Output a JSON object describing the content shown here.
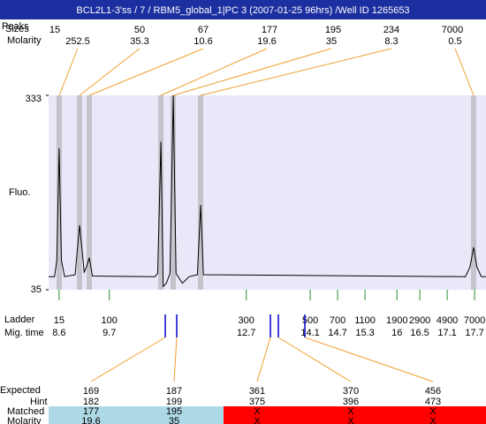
{
  "header": {
    "title": "BCL2L1-3'ss / 7 / RBM5_global_1|PC 3 (2007-01-25 96hrs) /Well ID 1265653"
  },
  "peak_table": {
    "row_labels": [
      "Peaks",
      "Sizes",
      "Molarity"
    ],
    "sizes": [
      15,
      50,
      67,
      177,
      195,
      234,
      7000
    ],
    "molarity": [
      252.5,
      35.3,
      10.6,
      19.6,
      35,
      8.3,
      0.5
    ]
  },
  "chart_data": {
    "type": "line",
    "ylabel": "Fluo.",
    "x": [
      8.37,
      8.5,
      8.55,
      8.6,
      8.65,
      8.72,
      8.95,
      9.05,
      9.15,
      9.2,
      9.26,
      9.33,
      10.7,
      10.76,
      10.83,
      10.88,
      10.95,
      11.03,
      11.1,
      11.16,
      11.3,
      11.45,
      11.63,
      11.7,
      11.76,
      17.5,
      17.6,
      17.68,
      17.75,
      17.85,
      17.95
    ],
    "values": [
      55,
      55,
      80,
      252,
      80,
      55,
      58,
      134,
      62,
      70,
      84,
      56,
      55,
      60,
      262,
      40,
      45,
      60,
      333,
      60,
      45,
      55,
      58,
      165,
      58,
      55,
      70,
      100,
      70,
      55,
      55
    ],
    "xlim": [
      8.37,
      17.95
    ],
    "ylim": [
      35,
      333
    ],
    "yticks": [
      35,
      333
    ],
    "color": "#000000"
  },
  "ladder": {
    "label": "Ladder",
    "time_label": "Mig. time",
    "sizes": [
      15,
      100,
      300,
      500,
      700,
      1100,
      1900,
      2900,
      4900,
      7000
    ],
    "times": [
      8.6,
      9.7,
      12.7,
      14.1,
      14.7,
      15.3,
      16,
      16.5,
      17.1,
      17.7
    ]
  },
  "expected": {
    "row_labels": [
      "Expected",
      "Hint",
      "Matched",
      "Molarity"
    ],
    "expected": [
      169,
      187,
      361,
      370,
      456
    ],
    "expected_colors": [
      "#ff0000",
      "#ff0000",
      "#000000",
      "#000000",
      "#000000"
    ],
    "hint": [
      182,
      199,
      375,
      396,
      473
    ],
    "matched": [
      177,
      195,
      "X",
      "X",
      "X"
    ],
    "molarity": [
      19.6,
      35,
      "X",
      "X",
      "X"
    ],
    "match_colors": [
      "#add8e6",
      "#add8e6",
      "#ff0000",
      "#ff0000",
      "#ff0000"
    ]
  }
}
